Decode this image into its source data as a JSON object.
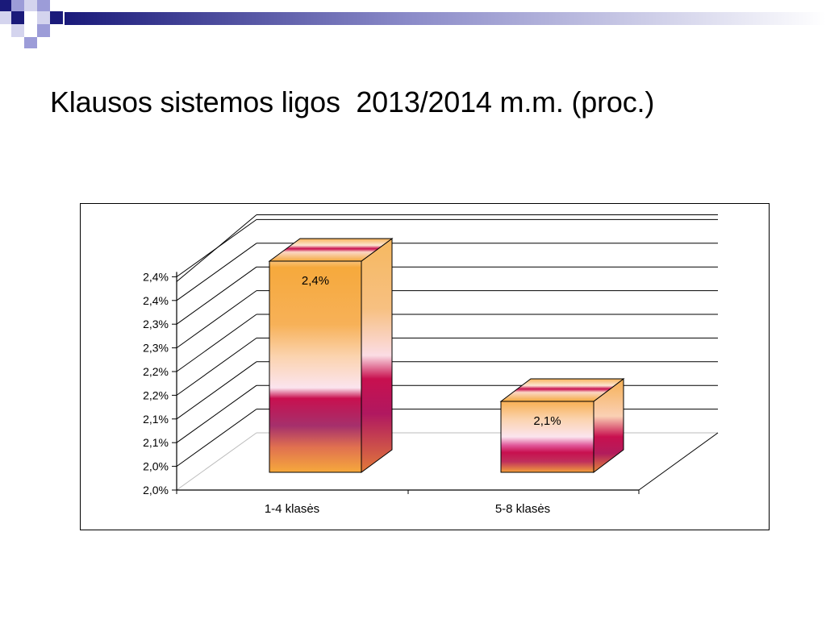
{
  "slide": {
    "title": "Klausos sistemos ligos  2013/2014 m.m. (proc.)"
  },
  "theme": {
    "navy": "#1a1a7a",
    "periwinkle": "#9c9cd8",
    "lavender": "#d4d4ee",
    "bar_orange": "#f5a940",
    "bar_magenta": "#c8104f",
    "bar_pink": "#fbe4ee"
  },
  "chart_data": {
    "type": "bar",
    "categories": [
      "1-4 klasės",
      "5-8 klasės"
    ],
    "values": [
      2.4,
      2.1
    ],
    "data_labels": [
      "2,4%",
      "2,1%"
    ],
    "y_tick_labels": [
      "2,0%",
      "2,0%",
      "2,1%",
      "2,1%",
      "2,2%",
      "2,2%",
      "2,3%",
      "2,3%",
      "2,4%",
      "2,4%"
    ],
    "ylim": [
      2.0,
      2.45
    ],
    "grid": true,
    "three_d": true,
    "legend": "none"
  }
}
